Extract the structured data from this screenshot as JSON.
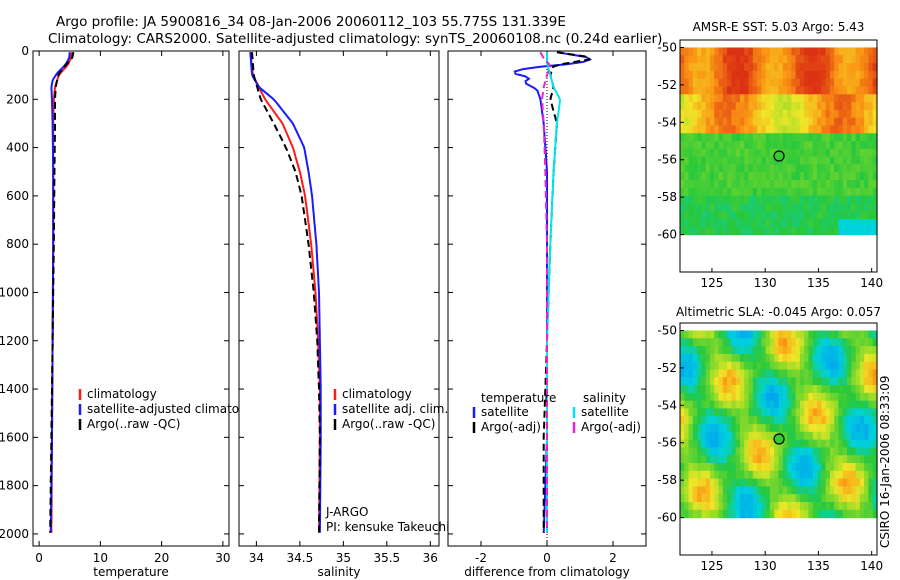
{
  "figure": {
    "title_line1": "Argo profile: JA 5900816_34 08-Jan-2006 20060112_103 55.775S 131.339E",
    "title_line2": "Climatology: CARS2000. Satellite-adjusted climatology: synTS_20060108.nc (0.24d earlier)",
    "credit": "CSIRO 16-Jan-2006 08:33:09"
  },
  "colors": {
    "red": "#ff1a1a",
    "blue": "#1a1aff",
    "black": "#000000",
    "cyan": "#00e5ee",
    "magenta": "#ee22cc"
  },
  "chart_data": [
    {
      "id": "temperature",
      "type": "line",
      "xlabel": "temperature",
      "ylabel": "",
      "xlim": [
        -1,
        31
      ],
      "ylim": [
        2050,
        0
      ],
      "xticks": [
        0,
        10,
        20,
        30
      ],
      "xtick_labels": [
        "0",
        "10",
        "20",
        "30"
      ],
      "yticks": [
        0,
        200,
        400,
        600,
        800,
        1000,
        1200,
        1400,
        1600,
        1800,
        2000
      ],
      "ytick_labels": [
        "0",
        "200",
        "400",
        "600",
        "800",
        "1000",
        "1200",
        "1400",
        "1600",
        "1800",
        "2000"
      ],
      "legend": [
        "climatology",
        "satellite-adjusted climatology",
        "Argo(..raw -QC)"
      ],
      "legend_position": "lower-left",
      "series": [
        {
          "name": "climatology",
          "color": "red",
          "dash": false,
          "depth": [
            5,
            30,
            60,
            100,
            150,
            200,
            300,
            500,
            800,
            1200,
            1600,
            2000
          ],
          "values": [
            5.3,
            5.2,
            4.6,
            3.2,
            2.6,
            2.4,
            2.3,
            2.3,
            2.3,
            2.2,
            2.1,
            2.0
          ]
        },
        {
          "name": "satellite-adjusted climatology",
          "color": "blue",
          "dash": false,
          "depth": [
            5,
            30,
            60,
            90,
            120,
            150,
            200,
            300,
            500,
            800,
            1200,
            1600,
            2000
          ],
          "values": [
            5.0,
            4.9,
            4.2,
            3.0,
            2.2,
            2.0,
            2.1,
            2.2,
            2.3,
            2.3,
            2.2,
            2.1,
            1.9
          ]
        },
        {
          "name": "Argo(..raw -QC)",
          "color": "black",
          "dash": true,
          "depth": [
            5,
            30,
            60,
            100,
            150,
            200,
            300,
            500,
            800,
            1200,
            1600,
            2000
          ],
          "values": [
            5.6,
            5.4,
            4.3,
            3.1,
            2.7,
            2.6,
            2.6,
            2.5,
            2.4,
            2.2,
            2.0,
            1.8
          ]
        }
      ]
    },
    {
      "id": "salinity",
      "type": "line",
      "xlabel": "salinity",
      "ylabel": "",
      "xlim": [
        33.8,
        36.1
      ],
      "ylim": [
        2050,
        0
      ],
      "xticks": [
        34,
        34.5,
        35,
        35.5,
        36
      ],
      "xtick_labels": [
        "34",
        "34.5",
        "35",
        "35.5",
        "36"
      ],
      "legend": [
        "climatology",
        "satellite adj. clim.",
        "Argo(..raw -QC)"
      ],
      "legend_position": "lower-left",
      "note_lines": [
        "J-ARGO",
        "PI: kensuke Takeuchi"
      ],
      "series": [
        {
          "name": "climatology",
          "color": "red",
          "dash": false,
          "depth": [
            5,
            100,
            200,
            300,
            400,
            500,
            600,
            800,
            1000,
            1200,
            1400,
            1600,
            2000
          ],
          "values": [
            33.93,
            33.96,
            34.1,
            34.3,
            34.42,
            34.5,
            34.56,
            34.63,
            34.68,
            34.71,
            34.73,
            34.73,
            34.72
          ]
        },
        {
          "name": "satellite adj. clim.",
          "color": "blue",
          "dash": false,
          "depth": [
            5,
            100,
            150,
            200,
            300,
            400,
            500,
            600,
            800,
            1000,
            1200,
            1400,
            1600,
            2000
          ],
          "values": [
            33.93,
            33.95,
            34.03,
            34.2,
            34.42,
            34.55,
            34.6,
            34.64,
            34.69,
            34.72,
            34.73,
            34.74,
            34.74,
            34.73
          ]
        },
        {
          "name": "Argo(..raw -QC)",
          "color": "black",
          "dash": true,
          "depth": [
            5,
            100,
            200,
            300,
            400,
            500,
            600,
            800,
            1000,
            1200,
            1400,
            1600,
            2000
          ],
          "values": [
            33.95,
            33.97,
            34.05,
            34.2,
            34.34,
            34.45,
            34.52,
            34.6,
            34.66,
            34.7,
            34.72,
            34.73,
            34.72
          ]
        }
      ]
    },
    {
      "id": "difference",
      "type": "line",
      "xlabel": "difference from climatology",
      "ylabel": "",
      "xlim": [
        -3,
        3
      ],
      "ylim": [
        2050,
        0
      ],
      "xticks": [
        -2,
        0,
        2
      ],
      "xtick_labels": [
        "-2",
        "0",
        "2"
      ],
      "legend_titles": [
        "temperature",
        "salinity"
      ],
      "legend": [
        "satellite",
        "Argo(-adj)",
        "satellite",
        "Argo(-adj)"
      ],
      "legend_position": "lower-center",
      "series": [
        {
          "name": "temperature satellite",
          "color": "blue",
          "dash": false,
          "depth": [
            5,
            30,
            50,
            70,
            90,
            110,
            130,
            160,
            200,
            300,
            500,
            800,
            1200,
            1600,
            2000
          ],
          "values": [
            0.3,
            1.4,
            1.0,
            -0.6,
            -1.1,
            -0.5,
            -0.7,
            -0.3,
            -0.2,
            -0.1,
            0.0,
            0.0,
            0.0,
            0.0,
            -0.1
          ]
        },
        {
          "name": "temperature Argo(-adj)",
          "color": "black",
          "dash": true,
          "depth": [
            5,
            30,
            60,
            100,
            150,
            200,
            300,
            500,
            800,
            1200,
            1600,
            2000
          ],
          "values": [
            0.3,
            1.5,
            0.2,
            0.1,
            0.2,
            0.1,
            0.3,
            0.2,
            0.1,
            0.0,
            -0.1,
            -0.1
          ]
        },
        {
          "name": "salinity satellite",
          "color": "cyan",
          "dash": false,
          "depth": [
            5,
            50,
            100,
            150,
            200,
            300,
            500,
            800,
            1200,
            1600,
            2000
          ],
          "values": [
            0.0,
            0.0,
            0.1,
            0.2,
            0.4,
            0.3,
            0.2,
            0.1,
            0.0,
            0.0,
            0.0
          ]
        },
        {
          "name": "salinity Argo(-adj)",
          "color": "magenta",
          "dash": true,
          "depth": [
            5,
            30,
            60,
            100,
            150,
            200,
            300,
            500,
            800,
            1200,
            1600,
            2000
          ],
          "values": [
            -0.2,
            -0.1,
            0.1,
            0.0,
            -0.1,
            -0.15,
            -0.1,
            -0.05,
            0.0,
            0.0,
            0.0,
            0.0
          ]
        }
      ]
    },
    {
      "id": "sst-map",
      "type": "heatmap",
      "title": "AMSR-E SST: 5.03  Argo: 5.43",
      "xlim": [
        122,
        140.5
      ],
      "ylim": [
        -62,
        -49.6
      ],
      "xticks": [
        125,
        130,
        135,
        140
      ],
      "xtick_labels": [
        "125",
        "130",
        "135",
        "140"
      ],
      "yticks": [
        -50,
        -52,
        -54,
        -56,
        -58,
        -60
      ],
      "ytick_labels": [
        "-50",
        "-52",
        "-54",
        "-56",
        "-58",
        "-60"
      ],
      "data_extent_lat": [
        -60,
        -50
      ],
      "marker": {
        "lon": 131.3,
        "lat": -55.8
      },
      "field": "sst"
    },
    {
      "id": "sla-map",
      "type": "heatmap",
      "title": "Altimetric SLA: -0.045  Argo: 0.057",
      "xlim": [
        122,
        140.5
      ],
      "ylim": [
        -62,
        -49.6
      ],
      "xticks": [
        125,
        130,
        135,
        140
      ],
      "xtick_labels": [
        "125",
        "130",
        "135",
        "140"
      ],
      "yticks": [
        -50,
        -52,
        -54,
        -56,
        -58,
        -60
      ],
      "ytick_labels": [
        "-50",
        "-52",
        "-54",
        "-56",
        "-58",
        "-60"
      ],
      "data_extent_lat": [
        -60,
        -50
      ],
      "marker": {
        "lon": 131.3,
        "lat": -55.8
      },
      "field": "sla"
    }
  ]
}
